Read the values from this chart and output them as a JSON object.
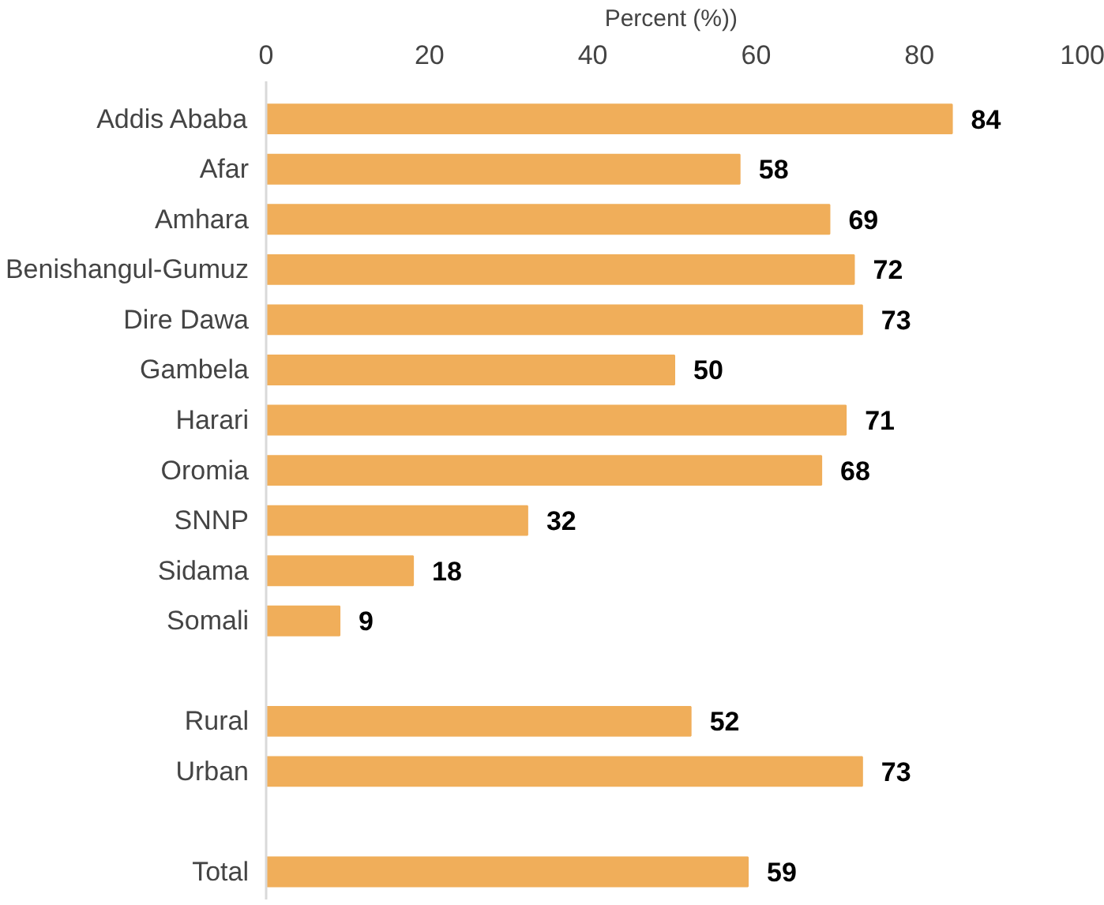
{
  "chart_data": {
    "type": "bar",
    "orientation": "horizontal",
    "xlabel": "Percent  (%))",
    "categories": [
      "Addis Ababa",
      "Afar",
      "Amhara",
      "Benishangul-Gumuz",
      "Dire Dawa",
      "Gambela",
      "Harari",
      "Oromia",
      "SNNP",
      "Sidama",
      "Somali",
      null,
      "Rural",
      "Urban",
      null,
      "Total"
    ],
    "values": [
      84,
      58,
      69,
      72,
      73,
      50,
      71,
      68,
      32,
      18,
      9,
      null,
      52,
      73,
      null,
      59
    ],
    "color": "#f0ae5a",
    "xlim": [
      0,
      100
    ],
    "xticks": [
      0,
      20,
      40,
      60,
      80,
      100
    ],
    "grid": false,
    "data_labels": true
  }
}
